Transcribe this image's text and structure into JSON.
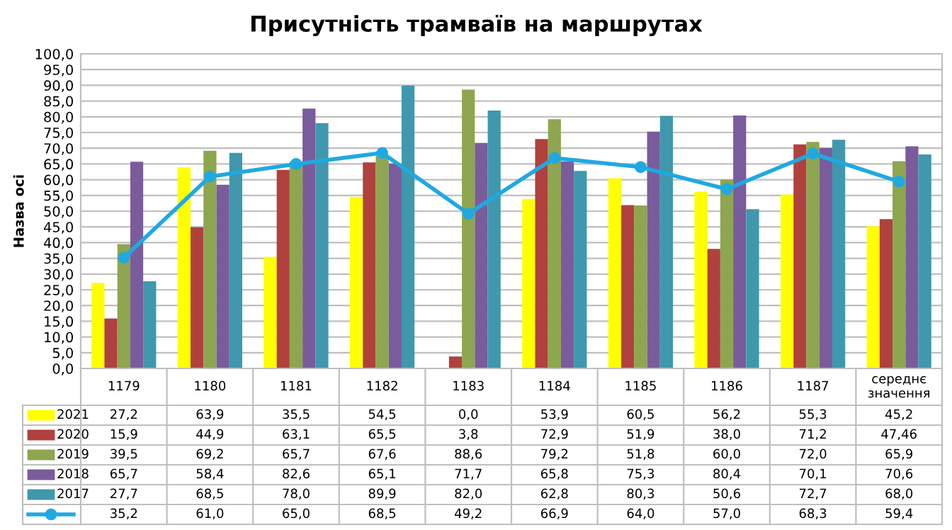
{
  "chart_data": {
    "type": "bar",
    "title": "Присутність трамваїв на маршрутах",
    "ylabel": "Назва осі",
    "categories": [
      "1179",
      "1180",
      "1181",
      "1182",
      "1183",
      "1184",
      "1185",
      "1186",
      "1187",
      "середнє значення"
    ],
    "ylim": [
      0,
      100
    ],
    "yticks": [
      {
        "value": 0,
        "label": "0,0"
      },
      {
        "value": 5,
        "label": "5,0"
      },
      {
        "value": 10,
        "label": "10,0"
      },
      {
        "value": 15,
        "label": "15,0"
      },
      {
        "value": 20,
        "label": "20,0"
      },
      {
        "value": 25,
        "label": "25,0"
      },
      {
        "value": 30,
        "label": "30,0"
      },
      {
        "value": 35,
        "label": "35,0"
      },
      {
        "value": 40,
        "label": "40,0"
      },
      {
        "value": 45,
        "label": "45,0"
      },
      {
        "value": 50,
        "label": "50,0"
      },
      {
        "value": 55,
        "label": "55,0"
      },
      {
        "value": 60,
        "label": "60,0"
      },
      {
        "value": 65,
        "label": "65,0"
      },
      {
        "value": 70,
        "label": "70,0"
      },
      {
        "value": 75,
        "label": "75,0"
      },
      {
        "value": 80,
        "label": "80,0"
      },
      {
        "value": 85,
        "label": "85,0"
      },
      {
        "value": 90,
        "label": "90,0"
      },
      {
        "value": 95,
        "label": "95,0"
      },
      {
        "value": 100,
        "label": "100,0"
      }
    ],
    "grid": "y",
    "legend": "bottom",
    "series": [
      {
        "name": "2021",
        "color": "#ffff00",
        "values": [
          27.2,
          63.9,
          35.5,
          54.5,
          0.0,
          53.9,
          60.5,
          56.2,
          55.3,
          45.2
        ],
        "value_labels": [
          "27,2",
          "63,9",
          "35,5",
          "54,5",
          "0,0",
          "53,9",
          "60,5",
          "56,2",
          "55,3",
          "45,2"
        ]
      },
      {
        "name": "2020",
        "color": "#b0413e",
        "values": [
          15.9,
          44.9,
          63.1,
          65.5,
          3.8,
          72.9,
          51.9,
          38.0,
          71.2,
          47.46
        ],
        "value_labels": [
          "15,9",
          "44,9",
          "63,1",
          "65,5",
          "3,8",
          "72,9",
          "51,9",
          "38,0",
          "71,2",
          "47,46"
        ]
      },
      {
        "name": "2019",
        "color": "#8da64f",
        "values": [
          39.5,
          69.2,
          65.7,
          67.6,
          88.6,
          79.2,
          51.8,
          60.0,
          72.0,
          65.9
        ],
        "value_labels": [
          "39,5",
          "69,2",
          "65,7",
          "67,6",
          "88,6",
          "79,2",
          "51,8",
          "60,0",
          "72,0",
          "65,9"
        ]
      },
      {
        "name": "2018",
        "color": "#7a5c9c",
        "values": [
          65.7,
          58.4,
          82.6,
          65.1,
          71.7,
          65.8,
          75.3,
          80.4,
          70.1,
          70.6
        ],
        "value_labels": [
          "65,7",
          "58,4",
          "82,6",
          "65,1",
          "71,7",
          "65,8",
          "75,3",
          "80,4",
          "70,1",
          "70,6"
        ]
      },
      {
        "name": "2017",
        "color": "#3f98ad",
        "values": [
          27.7,
          68.5,
          78.0,
          89.9,
          82.0,
          62.8,
          80.3,
          50.6,
          72.7,
          68.0
        ],
        "value_labels": [
          "27,7",
          "68,5",
          "78,0",
          "89,9",
          "82,0",
          "62,8",
          "80,3",
          "50,6",
          "72,7",
          "68,0"
        ]
      },
      {
        "type": "line",
        "color": "#1fa9e1",
        "marker": "circle",
        "line_style": "solid",
        "values": [
          35.2,
          61.0,
          65.0,
          68.5,
          49.2,
          66.9,
          64.0,
          57.0,
          68.3,
          59.4
        ],
        "value_labels": [
          "35,2",
          "61,0",
          "65,0",
          "68,5",
          "49,2",
          "66,9",
          "64,0",
          "57,0",
          "68,3",
          "59,4"
        ]
      }
    ]
  }
}
